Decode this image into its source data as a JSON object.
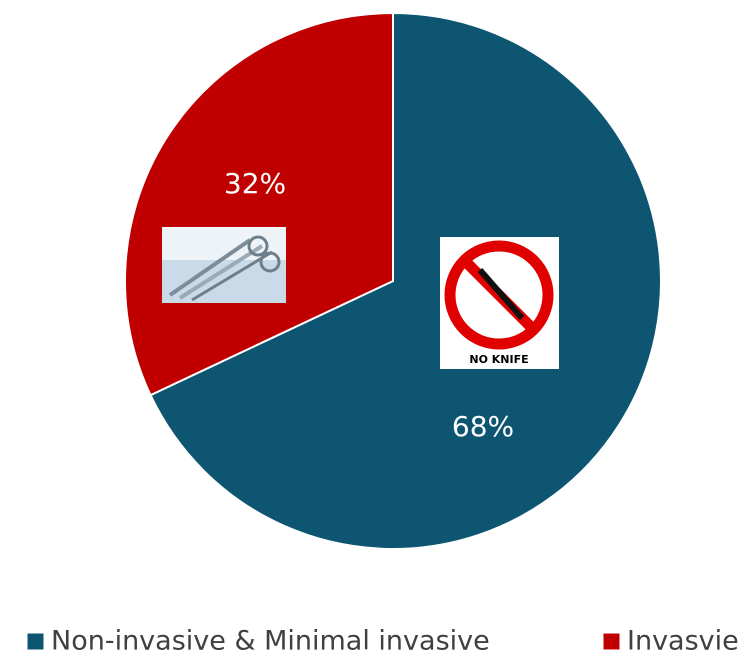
{
  "chart_data": {
    "type": "pie",
    "categories": [
      "Non-invasive & Minimal invasive",
      "Invasvie"
    ],
    "values": [
      68,
      32
    ],
    "value_labels": [
      "68%",
      "32%"
    ],
    "colors": [
      "#0d5570",
      "#c00000"
    ],
    "icon_label": "NO KNIFE"
  }
}
